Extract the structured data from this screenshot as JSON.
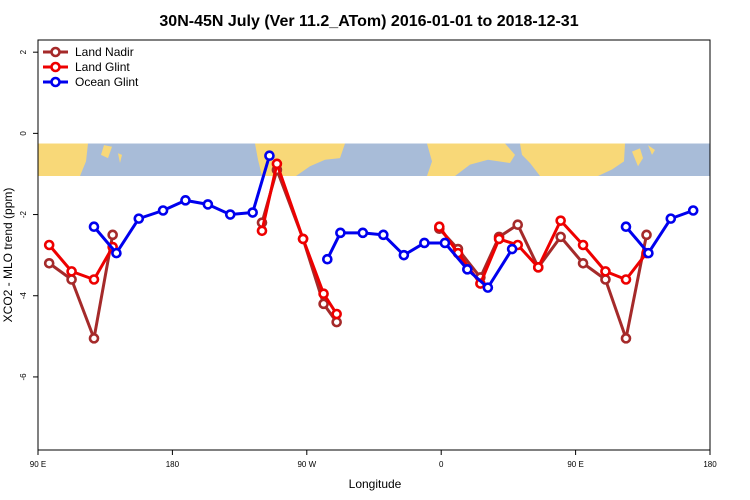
{
  "chart_data": {
    "type": "line",
    "title": "30N-45N July (Ver 11.2_ATom)   2016-01-01 to 2018-12-31",
    "xlabel": "Longitude",
    "ylabel": "XCO2 - MLO trend (ppm)",
    "x_ticks": [
      "90 E",
      "180",
      "90 W",
      "0",
      "90 E",
      "180"
    ],
    "y_ticks": [
      "-6",
      "-4",
      "-2",
      "0",
      "2"
    ],
    "ylim": [
      -7.8,
      2.3
    ],
    "xlim": [
      90,
      450
    ],
    "grid": false,
    "legend_position": "top-left",
    "map_band": {
      "y_top": -0.25,
      "y_bottom": -1.05
    },
    "series": [
      {
        "name": "Land Nadir",
        "color": "#a52a2a",
        "segments": [
          [
            [
              96,
              -3.2
            ],
            [
              108,
              -3.6
            ],
            [
              120,
              -5.05
            ],
            [
              130,
              -2.5
            ]
          ],
          [
            [
              210,
              -2.2
            ],
            [
              218,
              -0.9
            ],
            [
              232,
              -2.6
            ],
            [
              243,
              -4.2
            ],
            [
              250,
              -4.65
            ]
          ],
          [
            [
              305,
              -2.35
            ],
            [
              315,
              -2.85
            ],
            [
              327,
              -3.55
            ],
            [
              337,
              -2.55
            ],
            [
              347,
              -2.25
            ],
            [
              358,
              -3.3
            ],
            [
              370,
              -2.55
            ],
            [
              382,
              -3.2
            ],
            [
              394,
              -3.6
            ],
            [
              405,
              -5.05
            ],
            [
              416,
              -2.5
            ]
          ]
        ]
      },
      {
        "name": "Land Glint",
        "color": "#ee0000",
        "segments": [
          [
            [
              96,
              -2.75
            ],
            [
              108,
              -3.4
            ],
            [
              120,
              -3.6
            ],
            [
              130,
              -2.8
            ]
          ],
          [
            [
              210,
              -2.4
            ],
            [
              218,
              -0.75
            ],
            [
              232,
              -2.6
            ],
            [
              243,
              -3.95
            ],
            [
              250,
              -4.45
            ]
          ],
          [
            [
              305,
              -2.3
            ],
            [
              315,
              -2.95
            ],
            [
              327,
              -3.7
            ],
            [
              337,
              -2.6
            ],
            [
              347,
              -2.75
            ],
            [
              358,
              -3.3
            ],
            [
              370,
              -2.15
            ],
            [
              382,
              -2.75
            ],
            [
              394,
              -3.4
            ],
            [
              405,
              -3.6
            ],
            [
              416,
              -2.95
            ]
          ]
        ]
      },
      {
        "name": "Ocean Glint",
        "color": "#0000ee",
        "segments": [
          [
            [
              120,
              -2.3
            ],
            [
              132,
              -2.95
            ],
            [
              144,
              -2.1
            ],
            [
              157,
              -1.9
            ],
            [
              169,
              -1.65
            ],
            [
              181,
              -1.75
            ],
            [
              193,
              -2.0
            ],
            [
              205,
              -1.95
            ],
            [
              214,
              -0.55
            ]
          ],
          [
            [
              245,
              -3.1
            ],
            [
              252,
              -2.45
            ],
            [
              264,
              -2.45
            ],
            [
              275,
              -2.5
            ],
            [
              286,
              -3.0
            ],
            [
              297,
              -2.7
            ],
            [
              308,
              -2.7
            ],
            [
              320,
              -3.35
            ],
            [
              331,
              -3.8
            ],
            [
              344,
              -2.85
            ]
          ],
          [
            [
              405,
              -2.3
            ],
            [
              417,
              -2.95
            ],
            [
              429,
              -2.1
            ],
            [
              441,
              -1.9
            ]
          ]
        ]
      }
    ]
  }
}
